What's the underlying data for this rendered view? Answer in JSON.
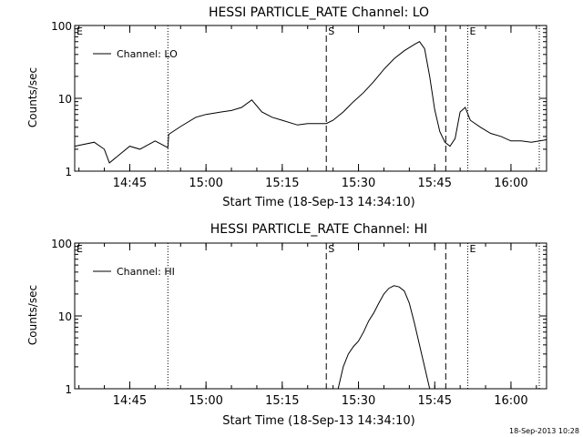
{
  "footer": {
    "timestamp": "18-Sep-2013 10:28"
  },
  "chart_data": [
    {
      "type": "line",
      "title": "HESSI PARTICLE_RATE Channel: LO",
      "xlabel": "Start Time (18-Sep-13 14:34:10)",
      "ylabel": "Counts/sec",
      "yscale": "log",
      "ylim": [
        1,
        100
      ],
      "xlim": [
        "14:34:10",
        "16:07:00"
      ],
      "x_ticks": [
        "14:45",
        "15:00",
        "15:15",
        "15:30",
        "15:45",
        "16:00"
      ],
      "y_ticks": [
        "1",
        "10",
        "100"
      ],
      "legend": {
        "entries": [
          "Channel: LO"
        ],
        "placement": "top-left"
      },
      "markers": [
        {
          "label": "E",
          "time": "14:34:10",
          "style": "dotted"
        },
        {
          "label": "",
          "time": "14:52:30",
          "style": "dotted"
        },
        {
          "label": "S",
          "time": "15:23:40",
          "style": "dashed"
        },
        {
          "label": "",
          "time": "15:47:10",
          "style": "dashed"
        },
        {
          "label": "E",
          "time": "15:51:30",
          "style": "dotted"
        },
        {
          "label": "",
          "time": "16:09:00",
          "style": "dotted"
        }
      ],
      "series": [
        {
          "name": "Channel: LO",
          "x": [
            "14:34:10",
            "14:38:00",
            "14:40:00",
            "14:41:00",
            "14:45:00",
            "14:47:00",
            "14:50:00",
            "14:52:30",
            "14:52:40",
            "14:55:00",
            "14:58:00",
            "15:00:00",
            "15:03:00",
            "15:05:00",
            "15:07:00",
            "15:09:00",
            "15:11:00",
            "15:13:00",
            "15:15:00",
            "15:18:00",
            "15:20:00",
            "15:22:00",
            "15:23:40",
            "15:25:00",
            "15:27:00",
            "15:29:00",
            "15:31:00",
            "15:33:00",
            "15:35:00",
            "15:37:00",
            "15:39:00",
            "15:41:00",
            "15:42:00",
            "15:43:00",
            "15:44:00",
            "15:45:00",
            "15:46:00",
            "15:47:00",
            "15:48:00",
            "15:49:00",
            "15:50:00",
            "15:51:00",
            "15:52:00",
            "15:54:00",
            "15:56:00",
            "15:58:00",
            "16:00:00",
            "16:02:00",
            "16:04:00",
            "16:07:00"
          ],
          "values": [
            2.2,
            2.5,
            2.0,
            1.3,
            2.2,
            2.0,
            2.6,
            2.1,
            3.2,
            4.1,
            5.5,
            6.0,
            6.5,
            6.8,
            7.5,
            9.5,
            6.5,
            5.5,
            5.0,
            4.3,
            4.5,
            4.5,
            4.5,
            5.0,
            6.5,
            9.0,
            12,
            17,
            25,
            35,
            45,
            55,
            60,
            48,
            20,
            7,
            3.5,
            2.5,
            2.2,
            2.8,
            6.5,
            7.5,
            5.0,
            4.0,
            3.3,
            3.0,
            2.6,
            2.6,
            2.5,
            2.7
          ]
        }
      ]
    },
    {
      "type": "line",
      "title": "HESSI PARTICLE_RATE Channel: HI",
      "xlabel": "Start Time (18-Sep-13 14:34:10)",
      "ylabel": "Counts/sec",
      "yscale": "log",
      "ylim": [
        1,
        100
      ],
      "xlim": [
        "14:34:10",
        "16:07:00"
      ],
      "x_ticks": [
        "14:45",
        "15:00",
        "15:15",
        "15:30",
        "15:45",
        "16:00"
      ],
      "y_ticks": [
        "1",
        "10",
        "100"
      ],
      "legend": {
        "entries": [
          "Channel: HI"
        ],
        "placement": "top-left"
      },
      "markers": [
        {
          "label": "E",
          "time": "14:34:10",
          "style": "dotted"
        },
        {
          "label": "",
          "time": "14:52:30",
          "style": "dotted"
        },
        {
          "label": "S",
          "time": "15:23:40",
          "style": "dashed"
        },
        {
          "label": "",
          "time": "15:47:10",
          "style": "dashed"
        },
        {
          "label": "E",
          "time": "15:51:30",
          "style": "dotted"
        },
        {
          "label": "",
          "time": "16:09:00",
          "style": "dotted"
        }
      ],
      "series": [
        {
          "name": "Channel: HI",
          "x": [
            "15:26:00",
            "15:27:00",
            "15:28:00",
            "15:29:00",
            "15:30:00",
            "15:31:00",
            "15:32:00",
            "15:33:00",
            "15:34:00",
            "15:35:00",
            "15:36:00",
            "15:37:00",
            "15:38:00",
            "15:39:00",
            "15:40:00",
            "15:41:00",
            "15:42:00",
            "15:43:00",
            "15:44:00"
          ],
          "values": [
            1.0,
            2.0,
            3.0,
            3.8,
            4.5,
            6.0,
            8.5,
            11,
            15,
            20,
            24,
            26,
            25,
            22,
            15,
            8,
            4,
            2,
            1.0
          ]
        }
      ]
    }
  ]
}
